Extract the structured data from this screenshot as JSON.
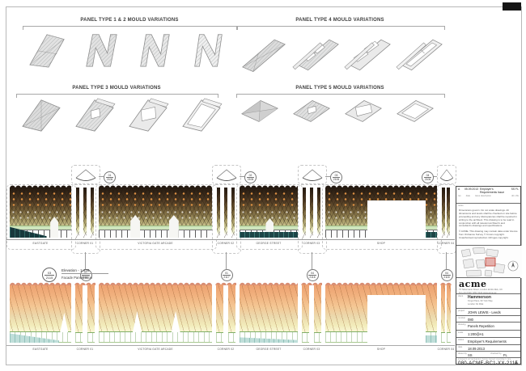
{
  "sections": {
    "type12": "PANEL TYPE 1 & 2  MOULD VARIATIONS",
    "type4": "PANEL TYPE 4 MOULD VARIATIONS",
    "type3": "PANEL TYPE 3  MOULD VARIATIONS",
    "type5": "PANEL TYPE 5  MOULD VARIATIONS"
  },
  "elevation": {
    "callout": {
      "num": "03",
      "sheet": "2115",
      "title": "Elevation - 1:420",
      "subtitle": "Facade Panelization"
    },
    "top_markers": [
      {
        "n": "01",
        "s": "2106"
      },
      {
        "n": "02",
        "s": "2106"
      },
      {
        "n": "03",
        "s": "2106"
      },
      {
        "n": "04",
        "s": "2106"
      }
    ],
    "bottom_markers": [
      {
        "n": "01",
        "s": "2117"
      },
      {
        "n": "01",
        "s": "2117"
      },
      {
        "n": "04",
        "s": "2116"
      },
      {
        "n": "04",
        "s": "2116"
      }
    ],
    "labels": {
      "seg1": "EASTGATE",
      "t1": "CORNER 01",
      "seg2": "VICTORIA GATE ARCADE",
      "t2": "CORNER 02",
      "seg3": "GEORGE STREET",
      "t3": "CORNER 03",
      "seg4": "SHOP",
      "t4": "CORNER 04"
    }
  },
  "titleblock": {
    "revision": {
      "rev": "A",
      "date": "05.09.2013",
      "description": "Employer's Requirements Issue",
      "by": "SS FL"
    },
    "revision_header": {
      "rev": "rev",
      "date": "date",
      "description": "issue description",
      "by": "drn chk"
    },
    "notes_label": "notes",
    "notes_1": "Dimensions govern. Do not scale drawings. All dimensions and levels shall be checked on site before proceeding and any discrepancies shall be reported in writing to the architect. This drawing is to be read in conjunction with all relevant architect's and consultant's drawings and specifications.",
    "notes_2": "© ACME. This drawing may contain data under licence from Ordnance Survey © Crown copyright. Unauthorised reproduction infringes copyright.",
    "firm": {
      "name": "acme",
      "address": "76 Tabernacle Street, London EC2A 4EA, UK",
      "contact": "Tel +44 (0)20 7251 5122   www.acme.ac"
    },
    "client_label": "client",
    "client": {
      "name": "Hammerson",
      "line1": "Kings Place, 90 York Way",
      "line2": "London N1 9GE"
    },
    "rows": [
      {
        "label": "project",
        "value": "JOHN LEWIS - Leeds"
      },
      {
        "label": "number",
        "value": "080"
      },
      {
        "label": "drawing",
        "value": "Panels Repetition"
      },
      {
        "label": "scale",
        "value": "1:200@A1"
      },
      {
        "label": "status",
        "value": "Employer's Requirements"
      },
      {
        "label": "date",
        "value": "18.09.2013"
      }
    ],
    "drawn_label": "drawn by",
    "drawn": "SS",
    "checked_label": "checked by",
    "checked": "FL",
    "fields": "project   originator   zone   level   number   rev",
    "number": "080-ACME-BC1-XX-2115",
    "rev": "A"
  }
}
